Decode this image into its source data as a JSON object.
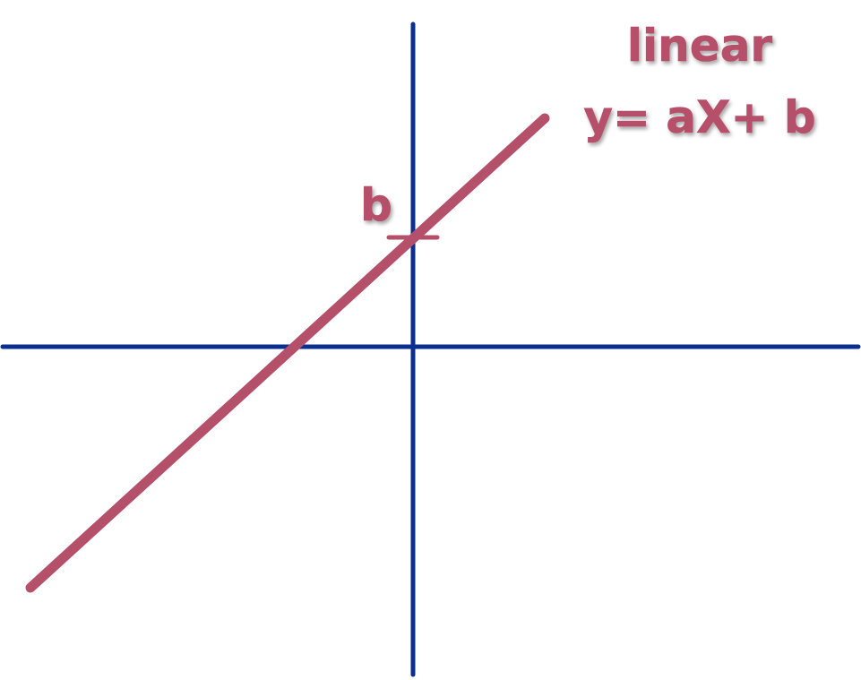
{
  "diagram": {
    "title_line1": "linear",
    "title_line2": "y= aX+ b",
    "intercept_label": "b"
  },
  "colors": {
    "axis": "#0a2f8f",
    "line": "#b5506b",
    "text": "#b5506b"
  }
}
